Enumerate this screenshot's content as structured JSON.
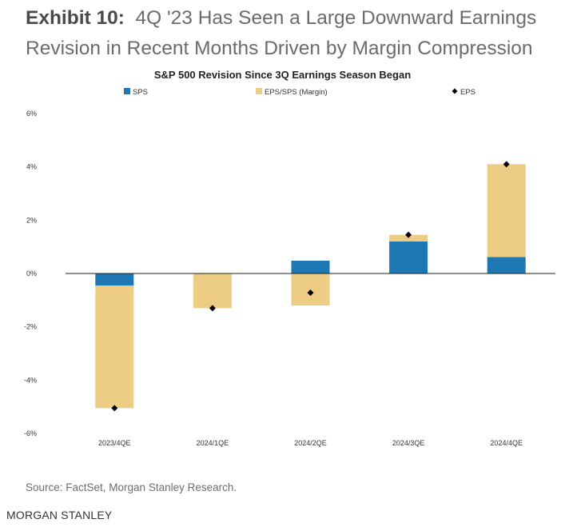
{
  "header": {
    "exhibit_label": "Exhibit 10:",
    "title_line1": "4Q '23 Has Seen a Large Downward Earnings",
    "title_line2": "Revision in Recent Months Driven by Margin Compression"
  },
  "chart_data": {
    "type": "bar",
    "stacked": true,
    "title": "S&P 500 Revision Since 3Q Earnings Season Began",
    "categories": [
      "2023/4QE",
      "2024/1QE",
      "2024/2QE",
      "2024/3QE",
      "2024/4QE"
    ],
    "series": [
      {
        "name": "SPS",
        "kind": "bar",
        "color": "#1f77b4",
        "values": [
          -0.45,
          0.0,
          0.48,
          1.2,
          0.62
        ]
      },
      {
        "name": "EPS/SPS (Margin)",
        "kind": "bar",
        "color": "#eccd83",
        "values": [
          -4.6,
          -1.3,
          -1.2,
          0.25,
          3.48
        ]
      },
      {
        "name": "EPS",
        "kind": "marker",
        "color": "#000000",
        "values": [
          -5.05,
          -1.3,
          -0.72,
          1.45,
          4.1
        ]
      }
    ],
    "ylim": [
      -6,
      6
    ],
    "yticks": [
      -6,
      -4,
      -2,
      0,
      2,
      4,
      6
    ],
    "ytick_labels": [
      "-6%",
      "-4%",
      "-2%",
      "0%",
      "2%",
      "4%",
      "6%"
    ],
    "legend_position": "top",
    "xlabel": "",
    "ylabel": ""
  },
  "footer": {
    "source": "Source: FactSet, Morgan Stanley Research.",
    "brand": "MORGAN STANLEY"
  }
}
